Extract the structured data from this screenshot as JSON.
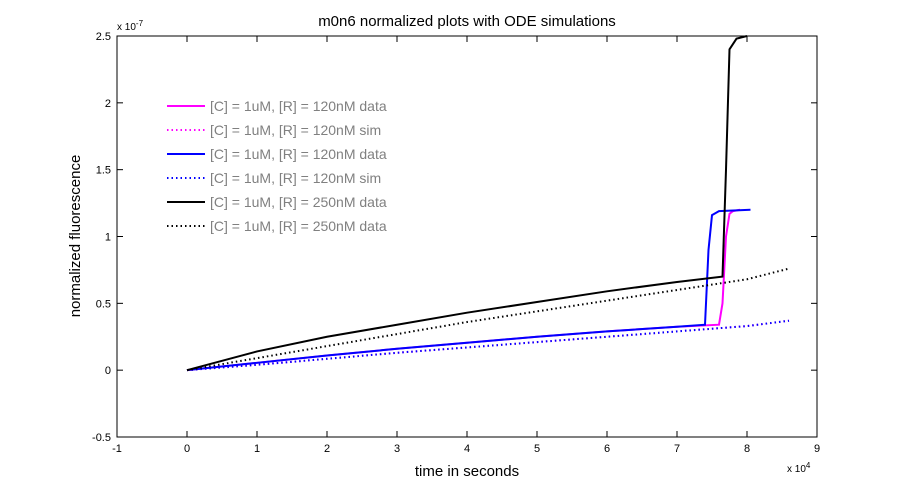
{
  "chart_data": {
    "type": "line",
    "title": "m0n6 normalized plots with ODE simulations",
    "x_label": "time in seconds",
    "y_label": "normalized fluorescence",
    "x_multiplier": {
      "base": "x 10",
      "exponent": "4"
    },
    "y_multiplier": {
      "base": "x 10",
      "exponent": "-7"
    },
    "xlim": [
      -1,
      9
    ],
    "xticks": [
      -1,
      0,
      1,
      2,
      3,
      4,
      5,
      6,
      7,
      8,
      9
    ],
    "ylim": [
      -0.5,
      2.5
    ],
    "yticks": [
      -0.5,
      0,
      0.5,
      1,
      1.5,
      2,
      2.5
    ],
    "legend": "upper-left",
    "series": [
      {
        "name": "[C] = 1uM, [R] = 120nM data",
        "color": "#ff00ff",
        "style": "solid",
        "x": [
          0,
          1,
          2,
          3,
          4,
          5,
          6,
          7,
          7.6,
          7.65,
          7.7,
          7.75,
          7.8,
          7.9
        ],
        "values": [
          0,
          0.055,
          0.11,
          0.16,
          0.205,
          0.25,
          0.29,
          0.325,
          0.34,
          0.5,
          1.0,
          1.17,
          1.19,
          1.2
        ]
      },
      {
        "name": "[C] = 1uM, [R] = 120nM sim",
        "color": "#ff00ff",
        "style": "dotted",
        "x": [
          0,
          1,
          2,
          3,
          4,
          5,
          6,
          7,
          8,
          8.6
        ],
        "values": [
          0,
          0.04,
          0.085,
          0.13,
          0.17,
          0.21,
          0.25,
          0.29,
          0.33,
          0.37
        ]
      },
      {
        "name": "[C] = 1uM, [R] = 120nM data",
        "color": "#0000ff",
        "style": "solid",
        "x": [
          0,
          1,
          2,
          3,
          4,
          5,
          6,
          7,
          7.4,
          7.45,
          7.5,
          7.6,
          8.05
        ],
        "values": [
          0,
          0.055,
          0.11,
          0.16,
          0.205,
          0.25,
          0.29,
          0.325,
          0.34,
          0.9,
          1.16,
          1.19,
          1.2
        ]
      },
      {
        "name": "[C] = 1uM, [R] = 120nM sim",
        "color": "#0000ff",
        "style": "dotted",
        "x": [
          0,
          1,
          2,
          3,
          4,
          5,
          6,
          7,
          8,
          8.6
        ],
        "values": [
          0,
          0.04,
          0.085,
          0.13,
          0.17,
          0.21,
          0.25,
          0.29,
          0.33,
          0.37
        ]
      },
      {
        "name": "[C] = 1uM, [R] = 250nM data",
        "color": "#000000",
        "style": "solid",
        "x": [
          0,
          1,
          2,
          3,
          4,
          5,
          6,
          7,
          7.65,
          7.7,
          7.75,
          7.85,
          8.0
        ],
        "values": [
          0,
          0.14,
          0.25,
          0.34,
          0.43,
          0.51,
          0.59,
          0.66,
          0.7,
          1.5,
          2.4,
          2.48,
          2.5
        ]
      },
      {
        "name": "[C] = 1uM, [R] = 250nM data",
        "color": "#000000",
        "style": "dotted",
        "x": [
          0,
          1,
          2,
          3,
          4,
          5,
          6,
          7,
          8,
          8.6
        ],
        "values": [
          0,
          0.09,
          0.18,
          0.27,
          0.36,
          0.44,
          0.52,
          0.6,
          0.68,
          0.76
        ]
      }
    ]
  }
}
